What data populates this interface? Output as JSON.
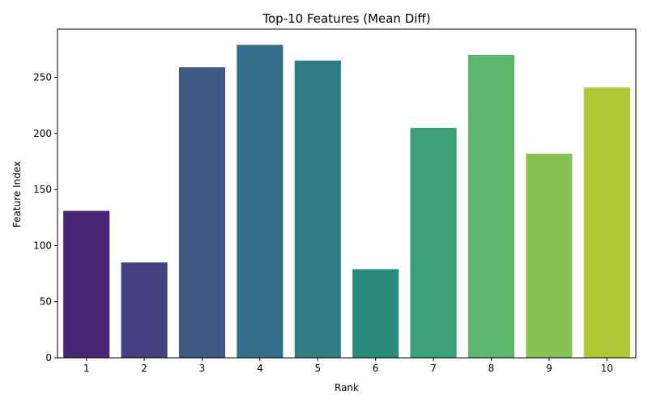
{
  "chart_data": {
    "type": "bar",
    "title": "Top-10 Features (Mean Diff)",
    "xlabel": "Rank",
    "ylabel": "Feature Index",
    "categories": [
      "1",
      "2",
      "3",
      "4",
      "5",
      "6",
      "7",
      "8",
      "9",
      "10"
    ],
    "values": [
      131,
      85,
      259,
      279,
      265,
      79,
      205,
      270,
      182,
      241
    ],
    "ylim": [
      0,
      293
    ],
    "yticks": [
      0,
      50,
      100,
      150,
      200,
      250
    ],
    "grid": false,
    "legend": "none",
    "colors": [
      "#482574",
      "#443f7f",
      "#3f5986",
      "#346d8a",
      "#2f7c81",
      "#2a8c7c",
      "#3aa078",
      "#5db66e",
      "#87c257",
      "#b0c836"
    ]
  }
}
